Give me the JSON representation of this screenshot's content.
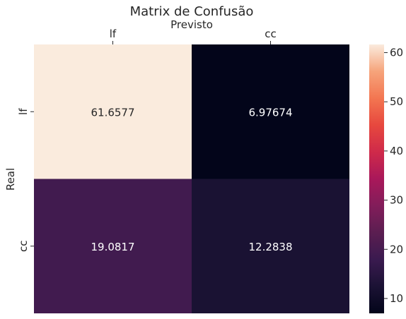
{
  "chart_data": {
    "type": "heatmap",
    "title": "Matrix de Confusão",
    "xlabel": "Previsto",
    "ylabel": "Real",
    "x_categories": [
      "lf",
      "cc"
    ],
    "y_categories": [
      "lf",
      "cc"
    ],
    "values": [
      [
        61.6577,
        6.97674
      ],
      [
        19.0817,
        12.2838
      ]
    ],
    "value_labels": [
      [
        "61.6577",
        "6.97674"
      ],
      [
        "19.0817",
        "12.2838"
      ]
    ],
    "colorbar": {
      "range": [
        6.97674,
        61.6577
      ],
      "ticks": [
        10,
        20,
        30,
        40,
        50,
        60
      ],
      "tick_labels": [
        "10",
        "20",
        "30",
        "40",
        "50",
        "60"
      ],
      "colormap": "rocket"
    },
    "x_tick_position": "top",
    "grid": false,
    "legend": "colorbar-right"
  }
}
